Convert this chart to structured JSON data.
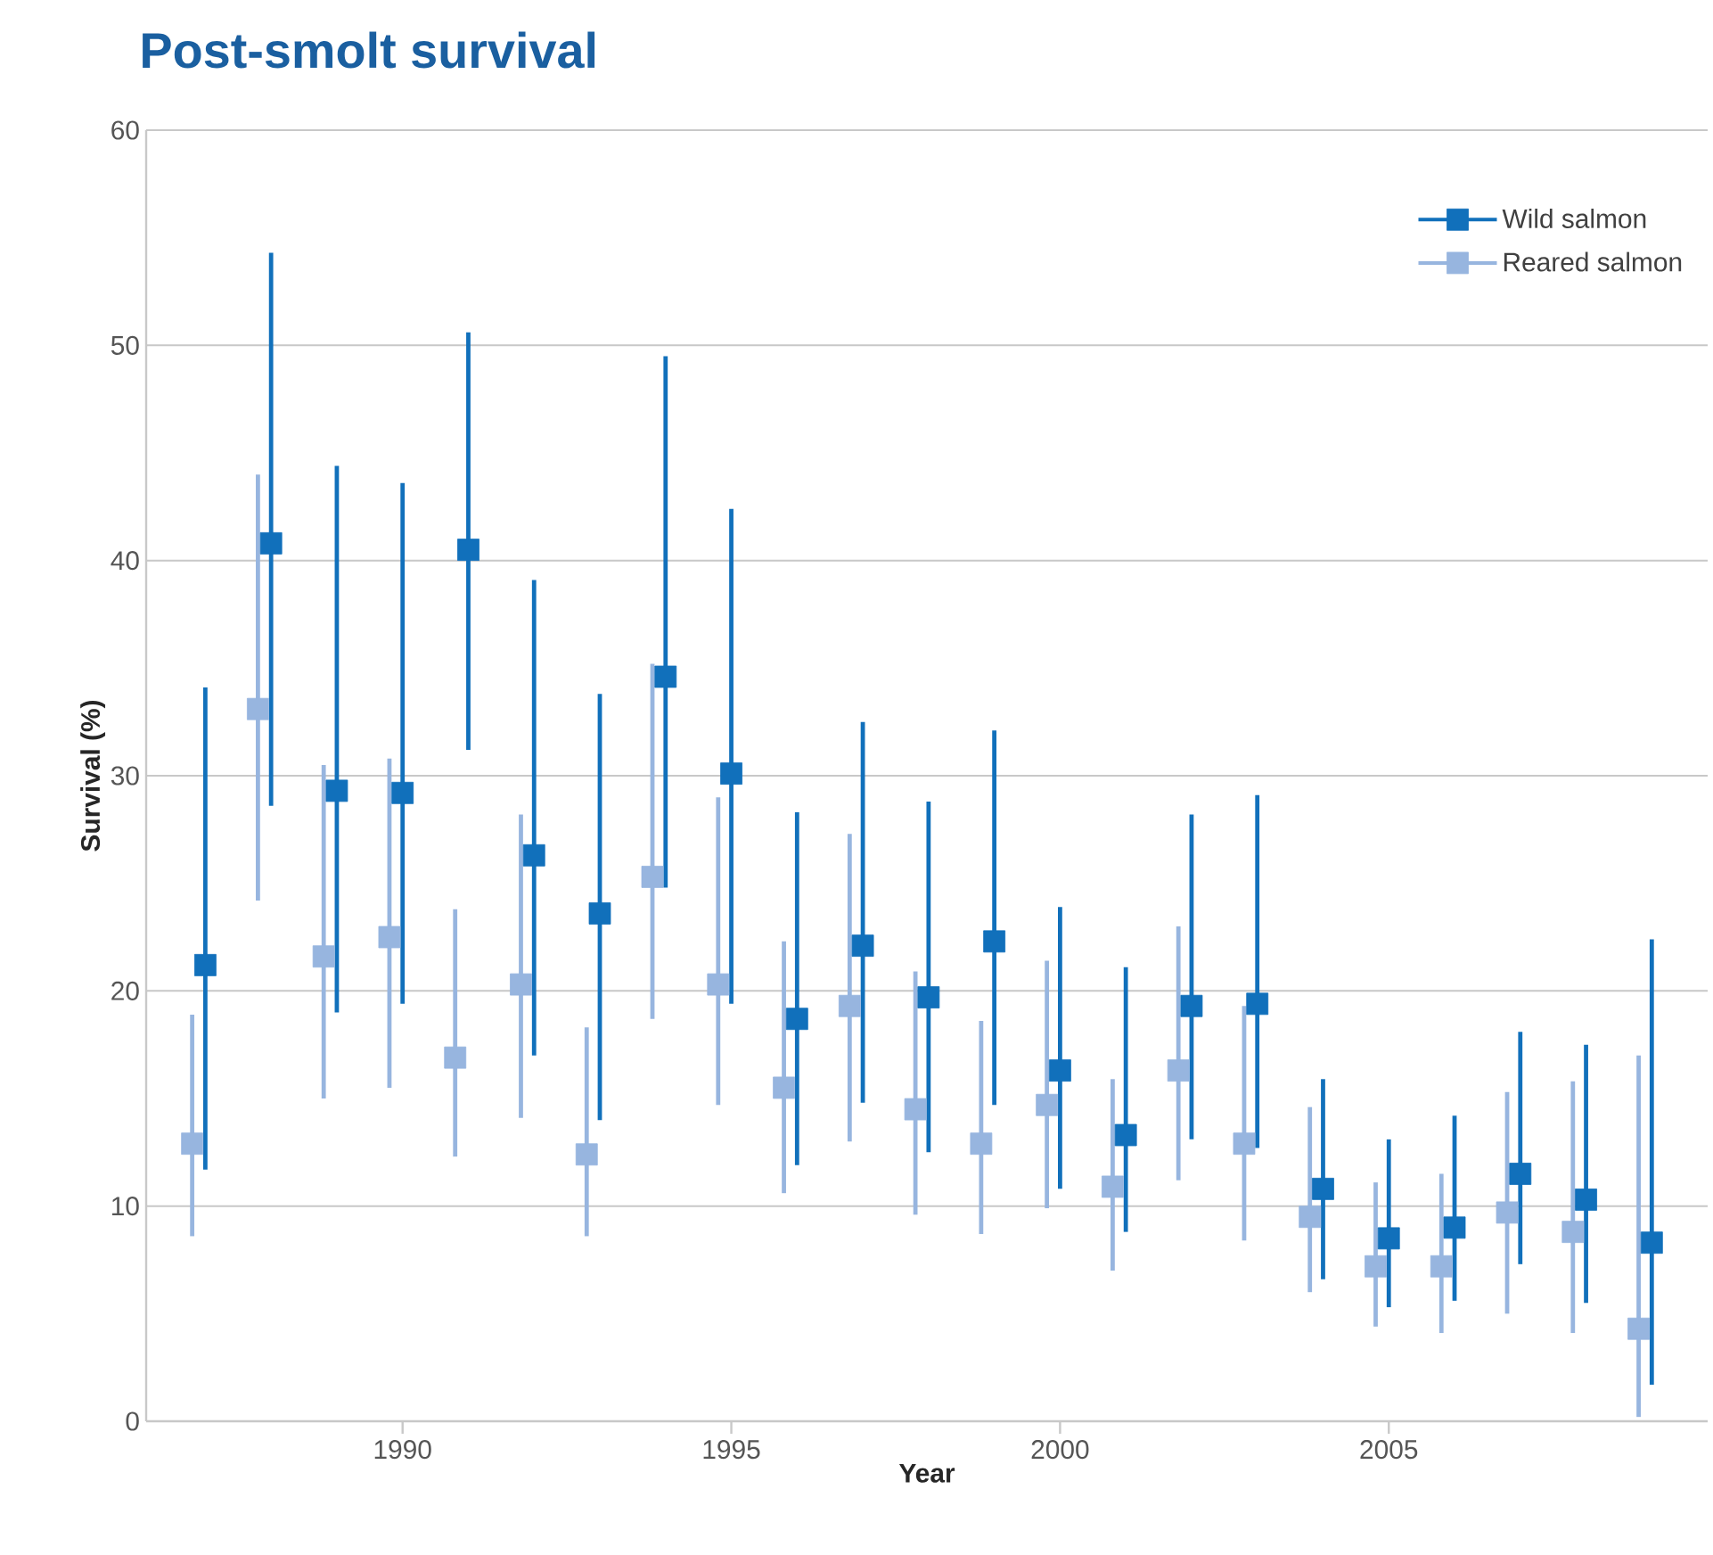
{
  "chart_data": {
    "type": "scatter",
    "title": "Post-smolt survival",
    "xlabel": "Year",
    "ylabel": "Survival (%)",
    "xlim": [
      1986.1,
      2009.85
    ],
    "ylim": [
      0,
      60
    ],
    "xticks": [
      1990,
      1995,
      2000,
      2005
    ],
    "yticks": [
      0,
      10,
      20,
      30,
      40,
      50,
      60
    ],
    "grid": "y",
    "legend": "top right",
    "marker": "square",
    "series": [
      {
        "name": "Wild salmon",
        "color": "#1170bb",
        "x": [
          1987,
          1988,
          1989,
          1990,
          1991,
          1992,
          1993,
          1994,
          1995,
          1996,
          1997,
          1998,
          1999,
          2000,
          2001,
          2002,
          2003,
          2004,
          2005,
          2006,
          2007,
          2008,
          2009
        ],
        "values": [
          21.2,
          40.8,
          29.3,
          29.2,
          40.5,
          26.3,
          23.6,
          34.6,
          30.1,
          18.7,
          22.1,
          19.7,
          22.3,
          16.3,
          13.3,
          19.3,
          19.4,
          10.8,
          8.5,
          9.0,
          11.5,
          10.3,
          8.3
        ],
        "errors": [
          [
            11.7,
            34.1
          ],
          [
            28.6,
            54.3
          ],
          [
            19.0,
            44.4
          ],
          [
            19.4,
            43.6
          ],
          [
            31.2,
            50.6
          ],
          [
            17.0,
            39.1
          ],
          [
            14.0,
            33.8
          ],
          [
            24.8,
            49.5
          ],
          [
            19.4,
            42.4
          ],
          [
            11.9,
            28.3
          ],
          [
            14.8,
            32.5
          ],
          [
            12.5,
            28.8
          ],
          [
            14.7,
            32.1
          ],
          [
            10.8,
            23.9
          ],
          [
            8.8,
            21.1
          ],
          [
            13.1,
            28.2
          ],
          [
            12.7,
            29.1
          ],
          [
            6.6,
            15.9
          ],
          [
            5.3,
            13.1
          ],
          [
            5.6,
            14.2
          ],
          [
            7.3,
            18.1
          ],
          [
            5.5,
            17.5
          ],
          [
            1.7,
            22.4
          ]
        ]
      },
      {
        "name": "Reared salmon",
        "color": "#97b5df",
        "x": [
          1986.8,
          1987.8,
          1988.8,
          1989.8,
          1990.8,
          1991.8,
          1992.8,
          1993.8,
          1994.8,
          1995.8,
          1996.8,
          1997.8,
          1998.8,
          1999.8,
          2000.8,
          2001.8,
          2002.8,
          2003.8,
          2004.8,
          2005.8,
          2006.8,
          2007.8,
          2008.8
        ],
        "values": [
          12.9,
          33.1,
          21.6,
          22.5,
          16.9,
          20.3,
          12.4,
          25.3,
          20.3,
          15.5,
          19.3,
          14.5,
          12.9,
          14.7,
          10.9,
          16.3,
          12.9,
          9.5,
          7.2,
          7.2,
          9.7,
          8.8,
          4.3
        ],
        "errors": [
          [
            8.6,
            18.9
          ],
          [
            24.2,
            44.0
          ],
          [
            15.0,
            30.5
          ],
          [
            15.5,
            30.8
          ],
          [
            12.3,
            23.8
          ],
          [
            14.1,
            28.2
          ],
          [
            8.6,
            18.3
          ],
          [
            18.7,
            35.2
          ],
          [
            14.7,
            29.0
          ],
          [
            10.6,
            22.3
          ],
          [
            13.0,
            27.3
          ],
          [
            9.6,
            20.9
          ],
          [
            8.7,
            18.6
          ],
          [
            9.9,
            21.4
          ],
          [
            7.0,
            15.9
          ],
          [
            11.2,
            23.0
          ],
          [
            8.4,
            19.3
          ],
          [
            6.0,
            14.6
          ],
          [
            4.4,
            11.1
          ],
          [
            4.1,
            11.5
          ],
          [
            5.0,
            15.3
          ],
          [
            4.1,
            15.8
          ],
          [
            0.2,
            17.0
          ]
        ]
      }
    ]
  }
}
